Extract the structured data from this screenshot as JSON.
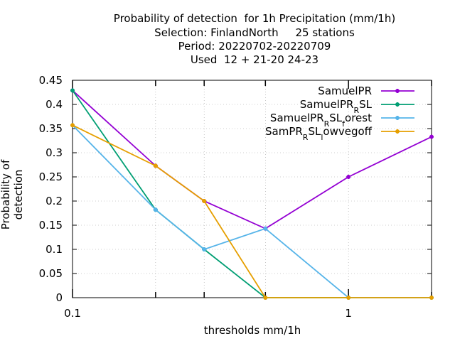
{
  "chart_data": {
    "type": "line",
    "title": [
      "Probability of detection  for 1h Precipitation (mm/1h)",
      "Selection: FinlandNorth     25 stations",
      "Period: 20220702-20220709",
      "Used  12 + 21-20 24-23"
    ],
    "xlabel": "thresholds mm/1h",
    "ylabel": "Probability of detection",
    "x_scale": "log",
    "xlim": [
      0.1,
      2
    ],
    "ylim": [
      0,
      0.45
    ],
    "x_ticks": [
      0.1,
      0.2,
      0.3,
      0.5,
      1,
      2
    ],
    "x_tick_labels": [
      "0.1",
      "",
      "",
      "",
      "1",
      ""
    ],
    "y_ticks": [
      0,
      0.05,
      0.1,
      0.15,
      0.2,
      0.25,
      0.3,
      0.35,
      0.4,
      0.45
    ],
    "y_tick_labels": [
      "0",
      "0.05",
      "0.1",
      "0.15",
      "0.2",
      "0.25",
      "0.3",
      "0.35",
      "0.4",
      "0.45"
    ],
    "grid": true,
    "legend_position": "top-right",
    "series": [
      {
        "name": "SamuelPR",
        "legend_main": "SamuelPR",
        "legend_parts": [],
        "color": "#9400d3",
        "x": [
          0.1,
          0.2,
          0.3,
          0.5,
          1,
          2
        ],
        "y": [
          0.429,
          0.273,
          0.2,
          0.143,
          0.25,
          0.333
        ]
      },
      {
        "name": "SamuelPR_RSL",
        "legend_main": "SamuelPR",
        "legend_parts": [
          [
            "R",
            "SL"
          ]
        ],
        "color": "#009e73",
        "x": [
          0.1,
          0.2,
          0.3,
          0.5,
          1,
          2
        ],
        "y": [
          0.429,
          0.182,
          0.1,
          0.0,
          0.0,
          0.0
        ]
      },
      {
        "name": "SamuelPR_RSL_forest",
        "legend_main": "SamuelPR",
        "legend_parts": [
          [
            "R",
            "SL"
          ],
          [
            "f",
            "orest"
          ]
        ],
        "color": "#56b4e9",
        "x": [
          0.1,
          0.2,
          0.3,
          0.5,
          1,
          2
        ],
        "y": [
          0.357,
          0.182,
          0.1,
          0.143,
          0.0,
          0.0
        ]
      },
      {
        "name": "SamPR_RSL_lowvegoff",
        "legend_main": "SamPR",
        "legend_parts": [
          [
            "R",
            "SL"
          ],
          [
            "l",
            "owvegoff"
          ]
        ],
        "color": "#e69f00",
        "x": [
          0.1,
          0.2,
          0.3,
          0.5,
          1,
          2
        ],
        "y": [
          0.357,
          0.273,
          0.2,
          0.0,
          0.0,
          0.0
        ]
      }
    ]
  }
}
